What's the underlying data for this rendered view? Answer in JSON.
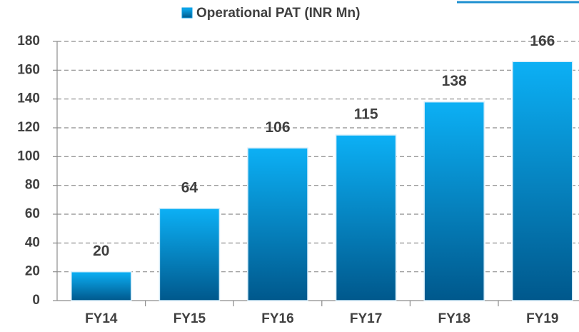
{
  "chart_data": {
    "type": "bar",
    "categories": [
      "FY14",
      "FY15",
      "FY16",
      "FY17",
      "FY18",
      "FY19"
    ],
    "series": [
      {
        "name": "Operational PAT (INR Mn)",
        "color": "#0a9be0",
        "values": [
          20,
          64,
          106,
          115,
          138,
          166
        ]
      }
    ],
    "ylim": [
      0,
      180
    ],
    "yticks": [
      0,
      20,
      40,
      60,
      80,
      100,
      120,
      140,
      160,
      180
    ],
    "grid": true,
    "legend": "top"
  }
}
